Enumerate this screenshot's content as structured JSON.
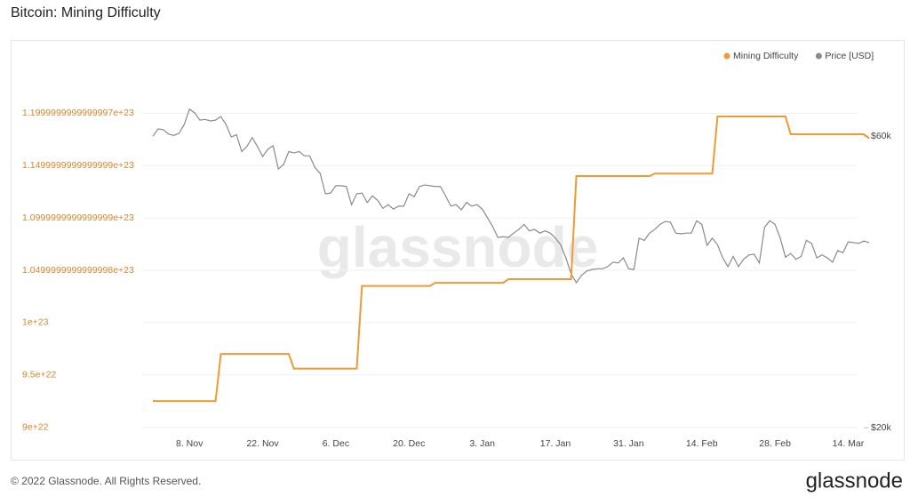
{
  "chart_data": {
    "type": "line",
    "title": "Bitcoin: Mining Difficulty",
    "watermark": "glassnode",
    "legend": "top-right",
    "grid": true,
    "categories": [
      null,
      null,
      null,
      null,
      null,
      null,
      null,
      "8. Nov",
      null,
      null,
      null,
      null,
      null,
      null,
      null,
      null,
      null,
      null,
      null,
      null,
      null,
      "22. Nov",
      null,
      null,
      null,
      null,
      null,
      null,
      null,
      null,
      null,
      null,
      null,
      null,
      null,
      "6. Dec",
      null,
      null,
      null,
      null,
      null,
      null,
      null,
      null,
      null,
      null,
      null,
      null,
      null,
      "20. Dec",
      null,
      null,
      null,
      null,
      null,
      null,
      null,
      null,
      null,
      null,
      null,
      null,
      null,
      "3. Jan",
      null,
      null,
      null,
      null,
      null,
      null,
      null,
      null,
      null,
      null,
      null,
      null,
      null,
      "17. Jan",
      null,
      null,
      null,
      null,
      null,
      null,
      null,
      null,
      null,
      null,
      null,
      null,
      null,
      "31. Jan",
      null,
      null,
      null,
      null,
      null,
      null,
      null,
      null,
      null,
      null,
      null,
      null,
      null,
      "14. Feb",
      null,
      null,
      null,
      null,
      null,
      null,
      null,
      null,
      null,
      null,
      null,
      null,
      null,
      "28. Feb",
      null,
      null,
      null,
      null,
      null,
      null,
      null,
      null,
      null,
      null,
      null,
      null,
      null,
      "14. Mar",
      null,
      null,
      null,
      null
    ],
    "series": [
      {
        "name": "Mining Difficulty",
        "color": "#f09a36",
        "values": [
          9.25e+22,
          9.25e+22,
          9.25e+22,
          9.25e+22,
          9.25e+22,
          9.25e+22,
          9.25e+22,
          9.25e+22,
          9.25e+22,
          9.25e+22,
          9.25e+22,
          9.25e+22,
          9.25e+22,
          9.7e+22,
          9.7e+22,
          9.7e+22,
          9.7e+22,
          9.7e+22,
          9.7e+22,
          9.7e+22,
          9.7e+22,
          9.7e+22,
          9.7e+22,
          9.7e+22,
          9.7e+22,
          9.7e+22,
          9.7e+22,
          9.56e+22,
          9.56e+22,
          9.56e+22,
          9.56e+22,
          9.56e+22,
          9.56e+22,
          9.56e+22,
          9.56e+22,
          9.56e+22,
          9.56e+22,
          9.56e+22,
          9.56e+22,
          9.56e+22,
          1.035e+23,
          1.035e+23,
          1.035e+23,
          1.035e+23,
          1.035e+23,
          1.035e+23,
          1.035e+23,
          1.035e+23,
          1.035e+23,
          1.035e+23,
          1.035e+23,
          1.035e+23,
          1.035e+23,
          1.035e+23,
          1.038e+23,
          1.038e+23,
          1.038e+23,
          1.038e+23,
          1.038e+23,
          1.038e+23,
          1.038e+23,
          1.038e+23,
          1.038e+23,
          1.038e+23,
          1.038e+23,
          1.038e+23,
          1.038e+23,
          1.038e+23,
          1.0415e+23,
          1.0415e+23,
          1.0415e+23,
          1.0415e+23,
          1.0415e+23,
          1.0415e+23,
          1.0415e+23,
          1.0415e+23,
          1.0415e+23,
          1.0415e+23,
          1.0415e+23,
          1.0415e+23,
          1.0415e+23,
          1.14e+23,
          1.14e+23,
          1.14e+23,
          1.14e+23,
          1.14e+23,
          1.14e+23,
          1.14e+23,
          1.14e+23,
          1.14e+23,
          1.14e+23,
          1.14e+23,
          1.14e+23,
          1.14e+23,
          1.14e+23,
          1.14e+23,
          1.1424e+23,
          1.1424e+23,
          1.1424e+23,
          1.1424e+23,
          1.1424e+23,
          1.1424e+23,
          1.1424e+23,
          1.1424e+23,
          1.1424e+23,
          1.1424e+23,
          1.1424e+23,
          1.1424e+23,
          1.197e+23,
          1.197e+23,
          1.197e+23,
          1.197e+23,
          1.197e+23,
          1.197e+23,
          1.197e+23,
          1.197e+23,
          1.197e+23,
          1.197e+23,
          1.197e+23,
          1.197e+23,
          1.197e+23,
          1.197e+23,
          1.18e+23,
          1.18e+23,
          1.18e+23,
          1.18e+23,
          1.18e+23,
          1.18e+23,
          1.18e+23,
          1.18e+23,
          1.18e+23,
          1.18e+23,
          1.18e+23,
          1.18e+23,
          1.18e+23,
          1.18e+23,
          1.18e+23,
          1.176e+23
        ]
      },
      {
        "name": "Price [USD]",
        "color": "#8a8a8a",
        "axis": "y2",
        "values": [
          60000,
          61000,
          60900,
          60300,
          60100,
          60400,
          61600,
          63700,
          63200,
          62200,
          62300,
          62100,
          62200,
          62700,
          61600,
          59900,
          60200,
          57900,
          58600,
          59800,
          58600,
          57200,
          58200,
          58700,
          55500,
          56100,
          57900,
          57700,
          57900,
          57300,
          57300,
          55700,
          54900,
          52100,
          52200,
          53200,
          53200,
          53100,
          50600,
          52100,
          52200,
          50900,
          51800,
          51200,
          50100,
          50600,
          50000,
          50400,
          50400,
          52100,
          51700,
          53100,
          53300,
          53200,
          53100,
          53100,
          51800,
          50400,
          50600,
          49900,
          50900,
          50400,
          50600,
          50000,
          48800,
          47600,
          46100,
          46200,
          46100,
          46700,
          47200,
          47900,
          47000,
          47200,
          46700,
          47000,
          46700,
          46000,
          45100,
          43300,
          41100,
          39900,
          40900,
          41500,
          41700,
          41800,
          41800,
          42100,
          42700,
          42600,
          43300,
          41800,
          41700,
          46000,
          45700,
          46700,
          47200,
          47900,
          48300,
          48200,
          46700,
          46600,
          46700,
          46700,
          48400,
          47900,
          45000,
          46000,
          45100,
          43300,
          42100,
          43500,
          42100,
          43100,
          43700,
          43800,
          42600,
          47500,
          48400,
          47900,
          46000,
          43400,
          43900,
          43100,
          43500,
          45700,
          45300,
          43300,
          43700,
          43300,
          42700,
          44300,
          44000,
          45500,
          45400,
          45300,
          45600,
          45400
        ]
      }
    ],
    "ylim": [
      8.92e+22,
      1.27e+23
    ],
    "yticks": [
      {
        "value": 9e+22,
        "label": "9e+22"
      },
      {
        "value": 9.5e+22,
        "label": "9.5e+22"
      },
      {
        "value": 1e+23,
        "label": "1e+23"
      },
      {
        "value": 1.0499999999999997e+23,
        "label": "1.0499999999999998e+23"
      },
      {
        "value": 1.0999999999999999e+23,
        "label": "1.0999999999999999e+23"
      },
      {
        "value": 1.1499999999999999e+23,
        "label": "1.1499999999999999e+23"
      },
      {
        "value": 1.1999999999999997e+23,
        "label": "1.1999999999999997e+23"
      }
    ],
    "y2lim": [
      18900,
      73200
    ],
    "y2ticks": [
      {
        "value": 20000,
        "label": "$20k"
      },
      {
        "value": 60000,
        "label": "$60k"
      }
    ]
  },
  "footer": {
    "copyright": "© 2022 Glassnode. All Rights Reserved.",
    "logo": "glassnode"
  }
}
